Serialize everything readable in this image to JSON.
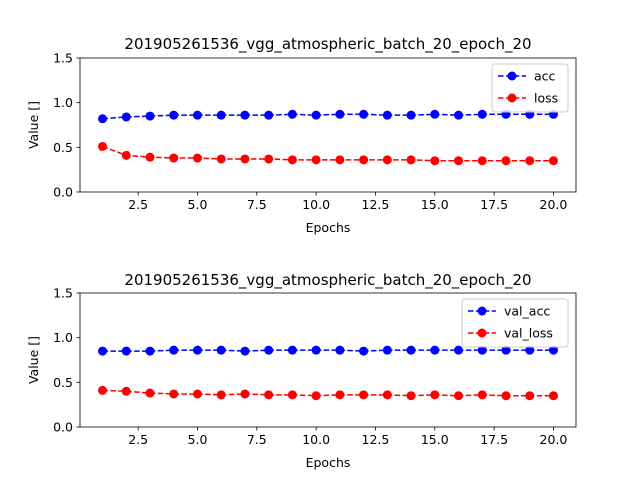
{
  "chart_data": [
    {
      "type": "line",
      "title": "201905261536_vgg_atmospheric_batch_20_epoch_20",
      "xlabel": "Epochs",
      "ylabel": "Value []",
      "xlim": [
        0.05,
        20.95
      ],
      "ylim": [
        0,
        1.5
      ],
      "xticks": [
        2.5,
        5.0,
        7.5,
        10.0,
        12.5,
        15.0,
        17.5,
        20.0
      ],
      "xtick_labels": [
        "2.5",
        "5.0",
        "7.5",
        "10.0",
        "12.5",
        "15.0",
        "17.5",
        "20.0"
      ],
      "yticks": [
        0,
        0.5,
        1.0,
        1.5
      ],
      "ytick_labels": [
        "0.0",
        "0.5",
        "1.0",
        "1.5"
      ],
      "grid": false,
      "legend_position": "upper right",
      "x": [
        1,
        2,
        3,
        4,
        5,
        6,
        7,
        8,
        9,
        10,
        11,
        12,
        13,
        14,
        15,
        16,
        17,
        18,
        19,
        20
      ],
      "series": [
        {
          "name": "acc",
          "color": "#0000ff",
          "style": "dashed-circle",
          "values": [
            0.82,
            0.84,
            0.85,
            0.86,
            0.86,
            0.86,
            0.86,
            0.86,
            0.87,
            0.86,
            0.87,
            0.87,
            0.86,
            0.86,
            0.87,
            0.86,
            0.87,
            0.87,
            0.87,
            0.87
          ]
        },
        {
          "name": "loss",
          "color": "#ff0000",
          "style": "dashed-circle",
          "values": [
            0.51,
            0.41,
            0.39,
            0.38,
            0.38,
            0.37,
            0.37,
            0.37,
            0.36,
            0.36,
            0.36,
            0.36,
            0.36,
            0.36,
            0.35,
            0.35,
            0.35,
            0.35,
            0.35,
            0.35
          ]
        }
      ]
    },
    {
      "type": "line",
      "title": "201905261536_vgg_atmospheric_batch_20_epoch_20",
      "xlabel": "Epochs",
      "ylabel": "Value []",
      "xlim": [
        0.05,
        20.95
      ],
      "ylim": [
        0,
        1.5
      ],
      "xticks": [
        2.5,
        5.0,
        7.5,
        10.0,
        12.5,
        15.0,
        17.5,
        20.0
      ],
      "xtick_labels": [
        "2.5",
        "5.0",
        "7.5",
        "10.0",
        "12.5",
        "15.0",
        "17.5",
        "20.0"
      ],
      "yticks": [
        0,
        0.5,
        1.0,
        1.5
      ],
      "ytick_labels": [
        "0.0",
        "0.5",
        "1.0",
        "1.5"
      ],
      "grid": false,
      "legend_position": "upper right",
      "x": [
        1,
        2,
        3,
        4,
        5,
        6,
        7,
        8,
        9,
        10,
        11,
        12,
        13,
        14,
        15,
        16,
        17,
        18,
        19,
        20
      ],
      "series": [
        {
          "name": "val_acc",
          "color": "#0000ff",
          "style": "dashed-circle",
          "values": [
            0.85,
            0.85,
            0.85,
            0.86,
            0.86,
            0.86,
            0.85,
            0.86,
            0.86,
            0.86,
            0.86,
            0.85,
            0.86,
            0.86,
            0.86,
            0.86,
            0.86,
            0.86,
            0.86,
            0.86
          ]
        },
        {
          "name": "val_loss",
          "color": "#ff0000",
          "style": "dashed-circle",
          "values": [
            0.41,
            0.4,
            0.38,
            0.37,
            0.37,
            0.36,
            0.37,
            0.36,
            0.36,
            0.35,
            0.36,
            0.36,
            0.36,
            0.35,
            0.36,
            0.35,
            0.36,
            0.35,
            0.35,
            0.35
          ]
        }
      ]
    }
  ]
}
